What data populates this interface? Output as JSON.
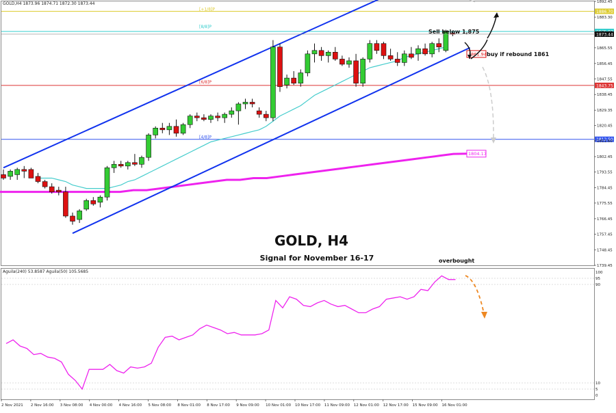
{
  "header": {
    "symbol_line": "GOLD,H4  1873.96  1874.71  1872.30  1873.44",
    "indicator_line": "Aguila(240) 53.8587  Aguila(50) 105.5685"
  },
  "titles": {
    "main": "GOLD, H4",
    "signal": "Signal for November 16-17"
  },
  "annotations": {
    "sell": "Sell below 1,875",
    "buy": "buy if rebound 1861",
    "overbought": "overbought"
  },
  "colors": {
    "bull": "#33cc33",
    "bear": "#dd1111",
    "channel": "#1133ee",
    "ema_fast": "#44cccc",
    "ema_slow": "#ee22ee",
    "oscillator": "#ee22ee",
    "arrow_up": "#111111",
    "arrow_down": "#cccccc",
    "arrow_osc": "#ee8822"
  },
  "chart_data": {
    "type": "candlestick",
    "symbol": "GOLD",
    "timeframe": "H4",
    "ylim": [
      1739.45,
      1892.45
    ],
    "y_ticks": [
      "1892.45",
      "1883.30",
      "1874.45",
      "1865.55",
      "1856.45",
      "1847.55",
      "1838.45",
      "1829.35",
      "1820.45",
      "1811.60",
      "1802.45",
      "1793.55",
      "1784.45",
      "1775.55",
      "1766.45",
      "1757.45",
      "1748.45",
      "1739.45"
    ],
    "x_ticks": [
      "2 Nov 2021",
      "2 Nov 16:00",
      "3 Nov 08:00",
      "4 Nov 00:00",
      "4 Nov 16:00",
      "5 Nov 08:00",
      "8 Nov 01:00",
      "8 Nov 17:00",
      "9 Nov 09:00",
      "10 Nov 01:00",
      "10 Nov 17:00",
      "11 Nov 09:00",
      "12 Nov 01:00",
      "12 Nov 17:00",
      "15 Nov 09:00",
      "16 Nov 01:00"
    ],
    "candles": [
      {
        "o": 1792,
        "h": 1795,
        "l": 1789,
        "c": 1790
      },
      {
        "o": 1791,
        "h": 1795,
        "l": 1789,
        "c": 1794
      },
      {
        "o": 1792,
        "h": 1796,
        "l": 1789,
        "c": 1795
      },
      {
        "o": 1795,
        "h": 1797,
        "l": 1790,
        "c": 1794
      },
      {
        "o": 1795,
        "h": 1796,
        "l": 1790,
        "c": 1790
      },
      {
        "o": 1791,
        "h": 1793,
        "l": 1787,
        "c": 1788
      },
      {
        "o": 1788,
        "h": 1789,
        "l": 1784,
        "c": 1785
      },
      {
        "o": 1785,
        "h": 1787,
        "l": 1781,
        "c": 1782
      },
      {
        "o": 1783,
        "h": 1785,
        "l": 1780,
        "c": 1782
      },
      {
        "o": 1782,
        "h": 1785,
        "l": 1767,
        "c": 1768
      },
      {
        "o": 1768,
        "h": 1770,
        "l": 1763,
        "c": 1765
      },
      {
        "o": 1766,
        "h": 1772,
        "l": 1764,
        "c": 1771
      },
      {
        "o": 1772,
        "h": 1778,
        "l": 1771,
        "c": 1777
      },
      {
        "o": 1777,
        "h": 1779,
        "l": 1774,
        "c": 1775
      },
      {
        "o": 1776,
        "h": 1780,
        "l": 1773,
        "c": 1779
      },
      {
        "o": 1779,
        "h": 1797,
        "l": 1777,
        "c": 1796
      },
      {
        "o": 1796,
        "h": 1800,
        "l": 1793,
        "c": 1798
      },
      {
        "o": 1798,
        "h": 1800,
        "l": 1796,
        "c": 1797
      },
      {
        "o": 1797,
        "h": 1800,
        "l": 1795,
        "c": 1799
      },
      {
        "o": 1799,
        "h": 1804,
        "l": 1797,
        "c": 1798
      },
      {
        "o": 1798,
        "h": 1803,
        "l": 1796,
        "c": 1802
      },
      {
        "o": 1802,
        "h": 1816,
        "l": 1800,
        "c": 1815
      },
      {
        "o": 1815,
        "h": 1820,
        "l": 1813,
        "c": 1819
      },
      {
        "o": 1819,
        "h": 1822,
        "l": 1816,
        "c": 1818
      },
      {
        "o": 1818,
        "h": 1822,
        "l": 1815,
        "c": 1820
      },
      {
        "o": 1820,
        "h": 1824,
        "l": 1814,
        "c": 1816
      },
      {
        "o": 1816,
        "h": 1822,
        "l": 1815,
        "c": 1821
      },
      {
        "o": 1821,
        "h": 1827,
        "l": 1819,
        "c": 1826
      },
      {
        "o": 1826,
        "h": 1828,
        "l": 1823,
        "c": 1825
      },
      {
        "o": 1825,
        "h": 1827,
        "l": 1823,
        "c": 1824
      },
      {
        "o": 1824,
        "h": 1827,
        "l": 1822,
        "c": 1826
      },
      {
        "o": 1826,
        "h": 1828,
        "l": 1823,
        "c": 1825
      },
      {
        "o": 1825,
        "h": 1828,
        "l": 1822,
        "c": 1827
      },
      {
        "o": 1827,
        "h": 1831,
        "l": 1825,
        "c": 1829
      },
      {
        "o": 1829,
        "h": 1834,
        "l": 1821,
        "c": 1833
      },
      {
        "o": 1833,
        "h": 1836,
        "l": 1830,
        "c": 1834
      },
      {
        "o": 1834,
        "h": 1836,
        "l": 1831,
        "c": 1833
      },
      {
        "o": 1829,
        "h": 1831,
        "l": 1825,
        "c": 1827
      },
      {
        "o": 1827,
        "h": 1829,
        "l": 1823,
        "c": 1825
      },
      {
        "o": 1825,
        "h": 1870,
        "l": 1823,
        "c": 1866
      },
      {
        "o": 1866,
        "h": 1868,
        "l": 1840,
        "c": 1843
      },
      {
        "o": 1844,
        "h": 1850,
        "l": 1842,
        "c": 1848
      },
      {
        "o": 1848,
        "h": 1852,
        "l": 1844,
        "c": 1845
      },
      {
        "o": 1845,
        "h": 1853,
        "l": 1843,
        "c": 1851
      },
      {
        "o": 1851,
        "h": 1864,
        "l": 1849,
        "c": 1862
      },
      {
        "o": 1862,
        "h": 1868,
        "l": 1857,
        "c": 1864
      },
      {
        "o": 1864,
        "h": 1866,
        "l": 1858,
        "c": 1861
      },
      {
        "o": 1861,
        "h": 1864,
        "l": 1857,
        "c": 1863
      },
      {
        "o": 1863,
        "h": 1866,
        "l": 1858,
        "c": 1859
      },
      {
        "o": 1859,
        "h": 1861,
        "l": 1855,
        "c": 1856
      },
      {
        "o": 1856,
        "h": 1860,
        "l": 1854,
        "c": 1858
      },
      {
        "o": 1858,
        "h": 1862,
        "l": 1843,
        "c": 1845
      },
      {
        "o": 1845,
        "h": 1860,
        "l": 1843,
        "c": 1859
      },
      {
        "o": 1859,
        "h": 1870,
        "l": 1857,
        "c": 1868
      },
      {
        "o": 1868,
        "h": 1870,
        "l": 1862,
        "c": 1864
      },
      {
        "o": 1868,
        "h": 1869,
        "l": 1859,
        "c": 1861
      },
      {
        "o": 1861,
        "h": 1865,
        "l": 1858,
        "c": 1859
      },
      {
        "o": 1859,
        "h": 1863,
        "l": 1855,
        "c": 1857
      },
      {
        "o": 1857,
        "h": 1864,
        "l": 1855,
        "c": 1862
      },
      {
        "o": 1862,
        "h": 1866,
        "l": 1859,
        "c": 1860
      },
      {
        "o": 1862,
        "h": 1867,
        "l": 1858,
        "c": 1865
      },
      {
        "o": 1865,
        "h": 1868,
        "l": 1861,
        "c": 1862
      },
      {
        "o": 1862,
        "h": 1869,
        "l": 1860,
        "c": 1868
      },
      {
        "o": 1868,
        "h": 1871,
        "l": 1863,
        "c": 1866
      },
      {
        "o": 1864,
        "h": 1876,
        "l": 1863,
        "c": 1875
      },
      {
        "o": 1873.96,
        "h": 1874.71,
        "l": 1872.3,
        "c": 1873.44
      }
    ],
    "ema_fast": [
      1790,
      1790,
      1790,
      1789,
      1788,
      1786,
      1785,
      1784,
      1784,
      1784,
      1784,
      1785,
      1786,
      1788,
      1789,
      1791,
      1793,
      1795,
      1797,
      1799,
      1801,
      1803,
      1805,
      1807,
      1809,
      1811,
      1812,
      1813,
      1814,
      1815,
      1816,
      1817,
      1818,
      1820,
      1823,
      1826,
      1828,
      1830,
      1832,
      1835,
      1838,
      1840,
      1842,
      1844,
      1846,
      1848,
      1850,
      1852,
      1854,
      1855,
      1856,
      1857,
      1858,
      1860,
      1861,
      1862,
      1863,
      1864,
      1865,
      1866
    ],
    "ema_slow": [
      1782,
      1782,
      1782,
      1782,
      1782,
      1782,
      1782,
      1782,
      1782,
      1782,
      1783,
      1783,
      1784,
      1785,
      1786,
      1787,
      1788,
      1789,
      1789,
      1790,
      1790,
      1791,
      1792,
      1793,
      1794,
      1795,
      1796,
      1797,
      1798,
      1799,
      1800,
      1801,
      1802,
      1803,
      1804,
      1804.17
    ],
    "channel": {
      "upper": [
        {
          "i": 0,
          "v": 1796
        },
        {
          "i": 66,
          "v": 1901
        }
      ],
      "lower": [
        {
          "i": 10,
          "v": 1758
        },
        {
          "i": 66,
          "v": 1866
        }
      ]
    },
    "levels": [
      {
        "label": "[+1/8]P",
        "value": 1886.7,
        "color": "#ddcc33",
        "tag": "1886.70"
      },
      {
        "label": "[8/8]P",
        "value": 1875.0,
        "color": "#33cccc",
        "tag": "1875.00"
      },
      {
        "label": "[6/8]P",
        "value": 1843.75,
        "color": "#dd3333",
        "tag": "1843.75"
      },
      {
        "label": "[4/8]P",
        "value": 1812.5,
        "color": "#3355ee",
        "tag": "1812.50"
      }
    ],
    "price_tags": [
      {
        "text": "1861.94",
        "value": 1861.94,
        "color": "#dd1111"
      },
      {
        "text": "1804.17",
        "value": 1804.17,
        "color": "#ee22ee"
      }
    ],
    "current_price": {
      "text": "1873.44",
      "value": 1873.44
    },
    "oscillator": {
      "ylim": [
        0,
        100
      ],
      "ref_lines": [
        95,
        90,
        10,
        5
      ],
      "tick_labels": [
        "100",
        "95",
        "90",
        "10",
        "5",
        "0"
      ],
      "values": [
        42,
        45,
        40,
        38,
        33,
        34,
        31,
        30,
        27,
        17,
        12,
        5,
        21,
        21,
        21,
        25,
        20,
        18,
        23,
        22,
        23,
        26,
        39,
        47,
        48,
        45,
        47,
        49,
        54,
        57,
        55,
        53,
        50,
        51,
        49,
        49,
        49,
        50,
        53,
        77,
        71,
        80,
        78,
        73,
        72,
        75,
        77,
        74,
        72,
        73,
        70,
        67,
        67,
        70,
        72,
        78,
        79,
        80,
        78,
        80,
        86,
        85,
        92,
        97,
        94,
        94
      ]
    }
  }
}
